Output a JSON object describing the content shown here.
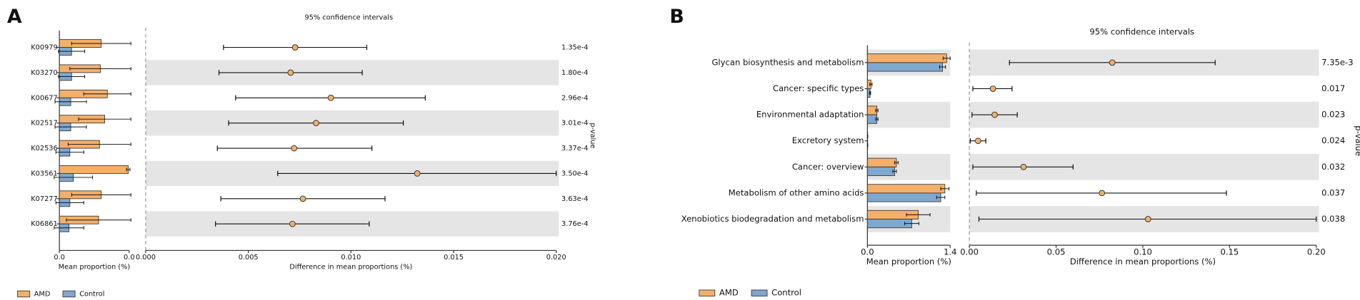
{
  "chart_data": [
    {
      "type": "errorbar",
      "label": "A",
      "title": "95% confidence intervals",
      "categories": [
        "K00979",
        "K03270",
        "K00677",
        "K02517",
        "K02536",
        "K03561",
        "K07277",
        "K06861"
      ],
      "series": [
        {
          "name": "AMD",
          "color": "#f4b06a",
          "values": [
            0.024,
            0.0235,
            0.0275,
            0.026,
            0.023,
            0.0395,
            0.024,
            0.0225
          ],
          "errors": [
            0.017,
            0.0175,
            0.0135,
            0.015,
            0.018,
            0.001,
            0.017,
            0.0185
          ]
        },
        {
          "name": "Control",
          "color": "#7fa8cf",
          "values": [
            0.007,
            0.007,
            0.0065,
            0.0065,
            0.006,
            0.008,
            0.006,
            0.0055
          ],
          "errors": [
            0.0075,
            0.0075,
            0.009,
            0.009,
            0.008,
            0.011,
            0.008,
            0.0085
          ]
        }
      ],
      "xlim": [
        0,
        0.04
      ],
      "xticks": [
        {
          "value": 0,
          "label": "0.0"
        },
        {
          "value": 0.04,
          "label": "0.0"
        }
      ],
      "xlabel": "Mean proportion (%)",
      "difference": {
        "color": "#f4b06a",
        "values": [
          0.00728,
          0.00706,
          0.00902,
          0.0083,
          0.00723,
          0.01323,
          0.00766,
          0.00715
        ],
        "ci_low": [
          0.00379,
          0.00357,
          0.00438,
          0.00404,
          0.00349,
          0.00643,
          0.00366,
          0.0034
        ],
        "ci_high": [
          0.01077,
          0.01055,
          0.01362,
          0.01255,
          0.01102,
          0.02,
          0.01166,
          0.01089
        ],
        "xlim": [
          0,
          0.02
        ],
        "xticks": [
          {
            "value": 0,
            "label": "0.000"
          },
          {
            "value": 0.005,
            "label": "0.005"
          },
          {
            "value": 0.01,
            "label": "0.010"
          },
          {
            "value": 0.015,
            "label": "0.015"
          },
          {
            "value": 0.02,
            "label": "0.020"
          }
        ],
        "xlabel": "Difference in mean proportions (%)"
      },
      "p_values": [
        "1.35e-4",
        "1.80e-4",
        "2.96e-4",
        "3.01e-4",
        "3.37e-4",
        "3.50e-4",
        "3.63e-4",
        "3.76e-4"
      ],
      "p_label": "p-value",
      "shade_bars": false
    },
    {
      "type": "errorbar",
      "label": "B",
      "title": "95% confidence intervals",
      "categories": [
        "Glycan biosynthesis and metabolism",
        "Cancer: specific types",
        "Environmental adaptation",
        "Excretory system",
        "Cancer: overview",
        "Metabolism of other amino acids",
        "Xenobiotics biodegradation and metabolism"
      ],
      "series": [
        {
          "name": "AMD",
          "color": "#f4b06a",
          "values": [
            1.34,
            0.06,
            0.16,
            0.005,
            0.49,
            1.31,
            0.86
          ],
          "errors": [
            0.06,
            0.02,
            0.02,
            0,
            0.03,
            0.07,
            0.2
          ]
        },
        {
          "name": "Control",
          "color": "#7fa8cf",
          "values": [
            1.27,
            0.045,
            0.16,
            0.005,
            0.46,
            1.24,
            0.75
          ],
          "errors": [
            0.05,
            0.01,
            0.02,
            0,
            0.03,
            0.07,
            0.12
          ]
        }
      ],
      "xlim": [
        0,
        1.4
      ],
      "xticks": [
        {
          "value": 0,
          "label": "0.0"
        },
        1.4
      ],
      "xlabel": "Mean proportion (%)",
      "difference": {
        "color": "#f4b06a",
        "values": [
          0.0824,
          0.0136,
          0.0146,
          0.005,
          0.0312,
          0.0764,
          0.103
        ],
        "ci_low": [
          0.0231,
          0.002,
          0.0015,
          0.0005,
          0.002,
          0.004,
          0.0055
        ],
        "ci_high": [
          0.1417,
          0.0246,
          0.0276,
          0.0095,
          0.0598,
          0.1482,
          0.2
        ],
        "xlim": [
          0,
          0.2
        ],
        "xticks": [
          {
            "value": 0,
            "label": "0.00"
          },
          {
            "value": 0.05,
            "label": "0.05"
          },
          {
            "value": 0.1,
            "label": "0.10"
          },
          {
            "value": 0.15,
            "label": "0.15"
          },
          {
            "value": 0.2,
            "label": "0.20"
          }
        ],
        "xlabel": "Difference in mean proportions (%)"
      },
      "p_values": [
        "7.35e-3",
        "0.017",
        "0.023",
        "0.024",
        "0.032",
        "0.037",
        "0.038"
      ],
      "p_label": "p-value",
      "shade_bars": true
    }
  ]
}
